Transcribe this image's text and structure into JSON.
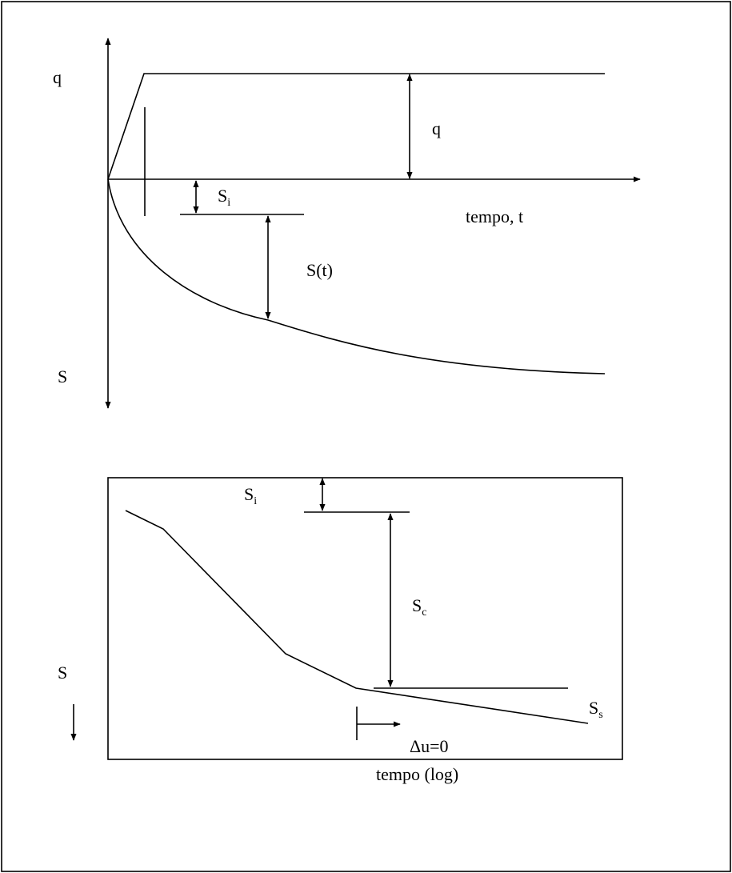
{
  "top": {
    "y_label_top": "q",
    "y_label_bottom": "S",
    "x_label": "tempo, t",
    "load_label": "q",
    "si": {
      "main": "S",
      "sub": "i"
    },
    "st_label": "S(t)"
  },
  "bottom": {
    "y_label": "S",
    "x_label": "tempo (log)",
    "si": {
      "main": "S",
      "sub": "i"
    },
    "sc": {
      "main": "S",
      "sub": "c"
    },
    "ss": {
      "main": "S",
      "sub": "s"
    },
    "du_label": "Δu=0"
  }
}
